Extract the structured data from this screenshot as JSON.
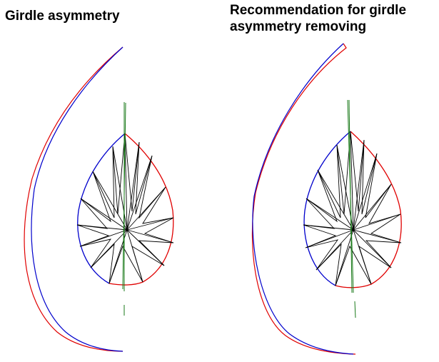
{
  "left_panel": {
    "title": "Girdle asymmetry"
  },
  "right_panel": {
    "title": "Recommendation for girdle\nasymmetry removing"
  },
  "colors": {
    "first_half": "#0000cc",
    "second_half": "#e00000",
    "axis": "#1a7a1a",
    "facets": "#000000",
    "background": "#ffffff"
  }
}
